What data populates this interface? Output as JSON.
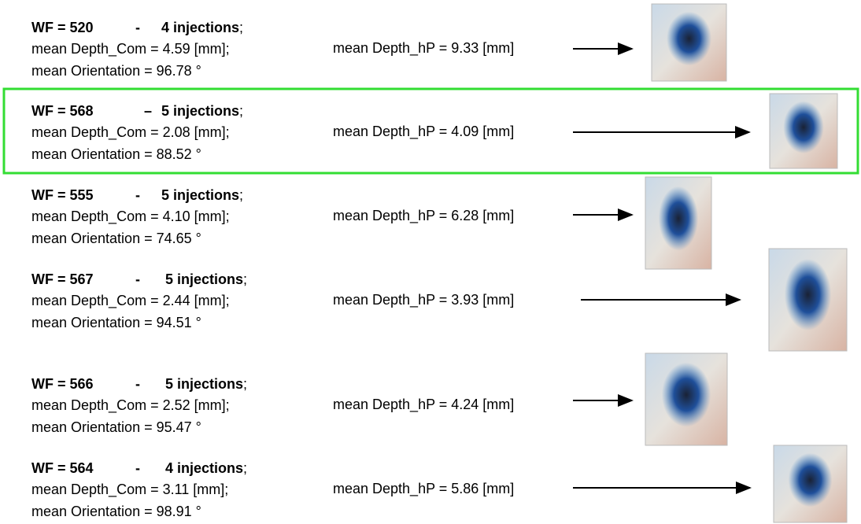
{
  "rows": [
    {
      "wf": "WF = 520",
      "sep": "-",
      "injections": "4 injections",
      "end": ";",
      "depth_com": "mean Depth_Com = 4.59 [mm];",
      "orientation": "mean Orientation = 96.78 °",
      "depth_hp": "mean Depth_hP = 9.33 [mm]"
    },
    {
      "wf": "WF = 568",
      "sep": "–",
      "injections": "5 injections",
      "end": ";",
      "depth_com": "mean Depth_Com = 2.08 [mm];",
      "orientation": "mean Orientation = 88.52 °",
      "depth_hp": "mean Depth_hP = 4.09 [mm]"
    },
    {
      "wf": "WF = 555",
      "sep": "-",
      "injections": "5 injections",
      "end": ";",
      "depth_com": "mean Depth_Com = 4.10 [mm];",
      "orientation": "mean Orientation = 74.65 °",
      "depth_hp": "mean Depth_hP = 6.28 [mm]"
    },
    {
      "wf": "WF = 567",
      "sep": "-",
      "injections": "5 injections",
      "end": ";",
      "depth_com": "mean Depth_Com = 2.44 [mm];",
      "orientation": "mean Orientation = 94.51 °",
      "depth_hp": "mean Depth_hP = 3.93 [mm]"
    },
    {
      "wf": "WF = 566",
      "sep": "-",
      "injections": "5 injections",
      "end": ";",
      "depth_com": "mean Depth_Com = 2.52 [mm];",
      "orientation": "mean Orientation = 95.47 °",
      "depth_hp": "mean Depth_hP = 4.24 [mm]"
    },
    {
      "wf": "WF = 564",
      "sep": "-",
      "injections": "4 injections",
      "end": ";",
      "depth_com": "mean Depth_Com = 3.11 [mm];",
      "orientation": "mean Orientation = 98.91 °",
      "depth_hp": "mean Depth_hP = 5.86 [mm]"
    }
  ]
}
